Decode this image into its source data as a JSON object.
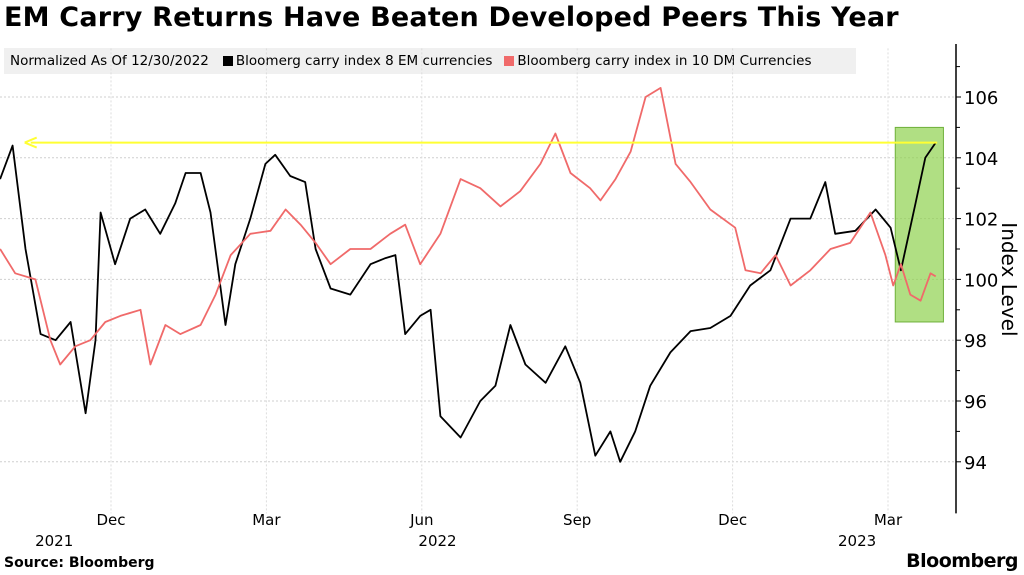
{
  "chart_data": {
    "type": "line",
    "title": "EM Carry Returns Have Beaten Developed Peers This Year",
    "subtitle": "Normalized As Of 12/30/2022",
    "ylabel": "Index Level",
    "xlabel": "",
    "ylim": [
      92.7,
      107.6
    ],
    "yticks": [
      94,
      96,
      98,
      100,
      102,
      104,
      106
    ],
    "x_unit": "months since Oct 2021",
    "xticks": [
      {
        "x": 2,
        "label": "Dec"
      },
      {
        "x": 5,
        "label": "Mar"
      },
      {
        "x": 8,
        "label": "Jun"
      },
      {
        "x": 11,
        "label": "Sep"
      },
      {
        "x": 14,
        "label": "Dec"
      },
      {
        "x": 17,
        "label": "Mar"
      }
    ],
    "year_labels": [
      {
        "x": 1,
        "label": "2021"
      },
      {
        "x": 8.4,
        "label": "2022"
      },
      {
        "x": 16.5,
        "label": "2023"
      }
    ],
    "grid": true,
    "series": [
      {
        "name": "Bloomerg carry index 8 EM currencies",
        "color": "#000000",
        "x": [
          -0.14,
          0.1,
          0.35,
          0.64,
          0.93,
          1.22,
          1.51,
          1.7,
          1.8,
          2.08,
          2.37,
          2.66,
          2.95,
          3.24,
          3.44,
          3.73,
          3.92,
          4.21,
          4.4,
          4.69,
          4.98,
          5.17,
          5.46,
          5.75,
          5.95,
          6.24,
          6.62,
          7.01,
          7.3,
          7.49,
          7.68,
          7.97,
          8.17,
          8.36,
          8.75,
          9.13,
          9.42,
          9.71,
          10.0,
          10.39,
          10.77,
          11.06,
          11.35,
          11.64,
          11.83,
          12.12,
          12.41,
          12.8,
          13.19,
          13.57,
          13.96,
          14.34,
          14.73,
          15.12,
          15.5,
          15.79,
          15.98,
          16.37,
          16.76,
          17.05,
          17.25,
          17.53,
          17.72,
          17.92
        ],
        "values": [
          103.3,
          104.4,
          101.0,
          98.2,
          98.0,
          98.6,
          95.6,
          98.0,
          102.2,
          100.5,
          102.0,
          102.3,
          101.5,
          102.5,
          103.5,
          103.5,
          102.2,
          98.5,
          100.5,
          102.0,
          103.8,
          104.1,
          103.4,
          103.2,
          101.0,
          99.7,
          99.5,
          100.5,
          100.7,
          100.8,
          98.2,
          98.8,
          99.0,
          95.5,
          94.8,
          96.0,
          96.5,
          98.5,
          97.2,
          96.6,
          97.8,
          96.6,
          94.2,
          95.0,
          94.0,
          95.0,
          96.5,
          97.6,
          98.3,
          98.4,
          98.8,
          99.8,
          100.3,
          102.0,
          102.0,
          103.2,
          101.5,
          101.6,
          102.3,
          101.7,
          100.3,
          102.5,
          104.0,
          104.5
        ]
      },
      {
        "name": "Bloomberg carry index in 10 DM Currencies",
        "color": "#f06a6a",
        "x": [
          -0.14,
          0.15,
          0.54,
          0.83,
          1.02,
          1.31,
          1.6,
          1.89,
          2.18,
          2.57,
          2.76,
          3.05,
          3.34,
          3.73,
          4.02,
          4.31,
          4.69,
          5.08,
          5.37,
          5.66,
          5.95,
          6.24,
          6.62,
          7.01,
          7.39,
          7.68,
          7.97,
          8.36,
          8.75,
          9.13,
          9.52,
          9.9,
          10.29,
          10.58,
          10.87,
          11.25,
          11.45,
          11.74,
          12.03,
          12.32,
          12.61,
          12.9,
          13.19,
          13.57,
          14.05,
          14.25,
          14.54,
          14.83,
          15.12,
          15.5,
          15.89,
          16.27,
          16.66,
          16.95,
          17.1,
          17.25,
          17.43,
          17.63,
          17.82,
          17.92
        ],
        "values": [
          101.0,
          100.2,
          100.0,
          98.0,
          97.2,
          97.8,
          98.0,
          98.6,
          98.8,
          99.0,
          97.2,
          98.5,
          98.2,
          98.5,
          99.5,
          100.8,
          101.5,
          101.6,
          102.3,
          101.8,
          101.2,
          100.5,
          101.0,
          101.0,
          101.5,
          101.8,
          100.5,
          101.5,
          103.3,
          103.0,
          102.4,
          102.9,
          103.8,
          104.8,
          103.5,
          103.0,
          102.6,
          103.3,
          104.2,
          106.0,
          106.3,
          103.8,
          103.2,
          102.3,
          101.7,
          100.3,
          100.2,
          100.8,
          99.8,
          100.3,
          101.0,
          101.2,
          102.2,
          100.8,
          99.8,
          100.5,
          99.5,
          99.3,
          100.2,
          100.1
        ]
      }
    ],
    "annotations": {
      "highlight_color": "#8fd14f",
      "reference_line_value": 104.5,
      "reference_line_color": "#ffff33"
    }
  },
  "footer": {
    "source": "Source: Bloomberg",
    "logo": "Bloomberg"
  }
}
